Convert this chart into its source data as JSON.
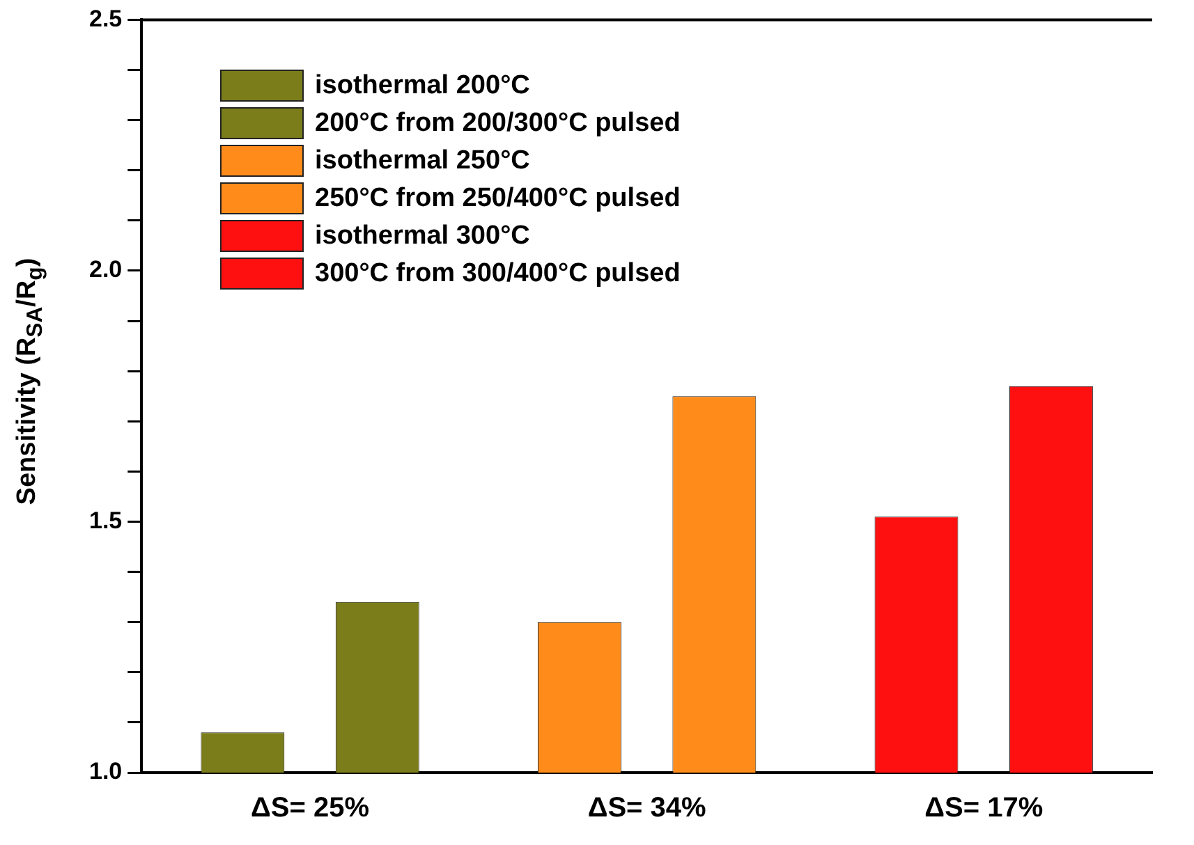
{
  "chart_data": {
    "type": "bar",
    "ylabel": "Sensitivity (R$_{SA}$/R$_{g}$)",
    "categories": [
      "ΔS= 25%",
      "ΔS= 34%",
      "ΔS= 17%"
    ],
    "series": [
      {
        "name": "isothermal 200°C",
        "color": "#7b7d1a",
        "values": [
          1.08,
          null,
          null
        ]
      },
      {
        "name": "200°C from 200/300°C pulsed",
        "color": "#7b7d1a",
        "values": [
          1.34,
          null,
          null
        ]
      },
      {
        "name": "isothermal 250°C",
        "color": "#ff8c1a",
        "values": [
          null,
          1.3,
          null
        ]
      },
      {
        "name": "250°C from 250/400°C pulsed",
        "color": "#ff8c1a",
        "values": [
          null,
          1.75,
          null
        ]
      },
      {
        "name": "isothermal 300°C",
        "color": "#ff1010",
        "values": [
          null,
          null,
          1.51
        ]
      },
      {
        "name": "300°C from 300/400°C pulsed",
        "color": "#ff1010",
        "values": [
          null,
          null,
          1.77
        ]
      }
    ],
    "ylim": [
      1.0,
      2.5
    ],
    "yticks": [
      {
        "value": 1.0,
        "label": "1.0"
      },
      {
        "value": 1.1,
        "label": null
      },
      {
        "value": 1.2,
        "label": null
      },
      {
        "value": 1.3,
        "label": null
      },
      {
        "value": 1.4,
        "label": null
      },
      {
        "value": 1.5,
        "label": "1.5"
      },
      {
        "value": 1.6,
        "label": null
      },
      {
        "value": 1.7,
        "label": null
      },
      {
        "value": 1.8,
        "label": null
      },
      {
        "value": 1.9,
        "label": null
      },
      {
        "value": 2.0,
        "label": "2.0"
      },
      {
        "value": 2.1,
        "label": null
      },
      {
        "value": 2.2,
        "label": null
      },
      {
        "value": 2.3,
        "label": null
      },
      {
        "value": 2.4,
        "label": null
      },
      {
        "value": 2.5,
        "label": "2.5"
      }
    ],
    "grid": false,
    "legend": "top left"
  }
}
